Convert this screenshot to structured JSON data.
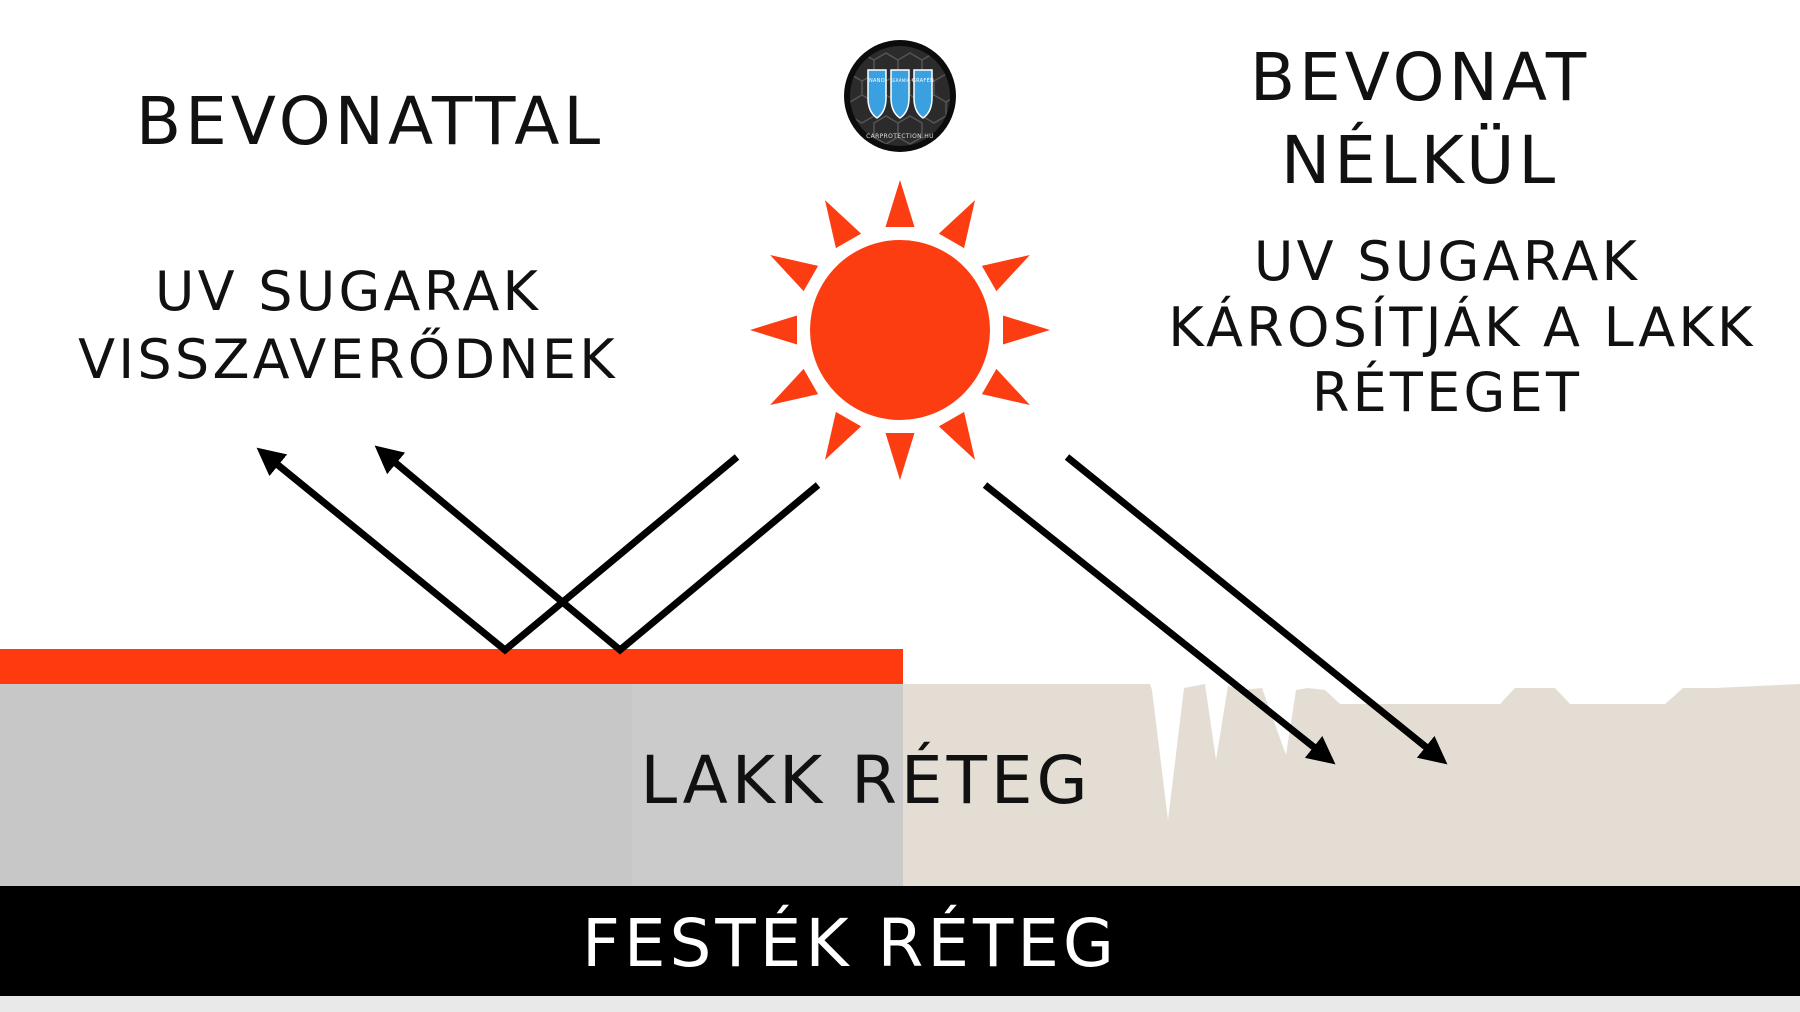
{
  "left_panel": {
    "title": "BEVONATTAL",
    "caption_lines": [
      "UV SUGARAK",
      "VISSZAVERŐDNEK"
    ]
  },
  "right_panel": {
    "title_lines": [
      "BEVONAT",
      "NÉLKÜL"
    ],
    "caption_lines": [
      "UV SUGARAK",
      "KÁROSÍTJÁK A LAKK",
      "RÉTEGET"
    ]
  },
  "layers": {
    "clear_coat_label": "LAKK RÉTEG",
    "paint_label": "FESTÉK RÉTEG"
  },
  "logo": {
    "icon": "shield-logo-icon",
    "shield_words": [
      "NANO",
      "KERÁMIA",
      "GRAFÉN"
    ],
    "ring_text": "CARPROTECTION.HU"
  },
  "sun": {
    "icon": "sun-icon"
  },
  "colors": {
    "sun": "#fc3d11",
    "coating": "#ff3a0f",
    "clear_coat_left": "#c8c8c8",
    "clear_coat_right": "#e4ddd3",
    "paint": "#000000",
    "text": "#111111",
    "arrow": "#000000"
  }
}
